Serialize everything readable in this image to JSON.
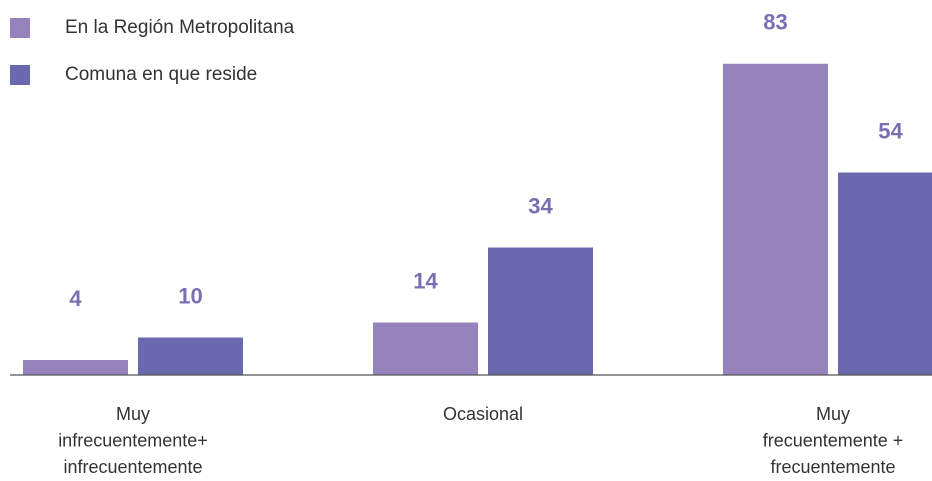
{
  "chart_data": {
    "type": "bar",
    "categories": [
      "Muy\ninfrecuentemente+\ninfrecuentemente",
      "Ocasional",
      "Muy\nfrecuentemente +\nfrecuentemente"
    ],
    "series": [
      {
        "name": "En la Región Metropolitana",
        "color": "#9683bd",
        "values": [
          4,
          14,
          83
        ]
      },
      {
        "name": "Comuna en que reside",
        "color": "#6a68ae",
        "values": [
          10,
          34,
          54
        ]
      }
    ]
  }
}
